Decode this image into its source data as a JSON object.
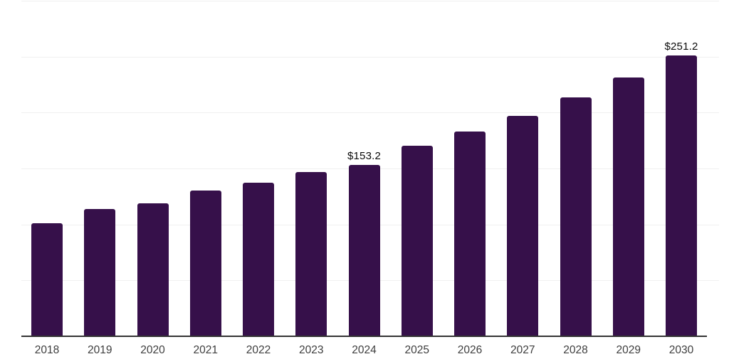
{
  "chart_data": {
    "type": "bar",
    "title": "",
    "xlabel": "",
    "ylabel": "",
    "categories": [
      "2018",
      "2019",
      "2020",
      "2021",
      "2022",
      "2023",
      "2024",
      "2025",
      "2026",
      "2027",
      "2028",
      "2029",
      "2030"
    ],
    "values": [
      101.0,
      113.8,
      119.0,
      130.0,
      137.6,
      147.0,
      153.2,
      170.4,
      183.0,
      197.0,
      213.5,
      231.3,
      251.2
    ],
    "data_labels": {
      "2024": "$153.2",
      "2030": "$251.2"
    },
    "ylim": [
      0,
      300
    ],
    "gridline_step": 50,
    "grid": true,
    "legend": "none",
    "currency_prefix": "$"
  },
  "style": {
    "bar_color": "#36104A",
    "grid_color": "#f0f0f0",
    "axis_color": "#333333",
    "tick_label_color": "#3d3d3d",
    "data_label_color": "#0a0a0a",
    "background_color": "#ffffff"
  }
}
